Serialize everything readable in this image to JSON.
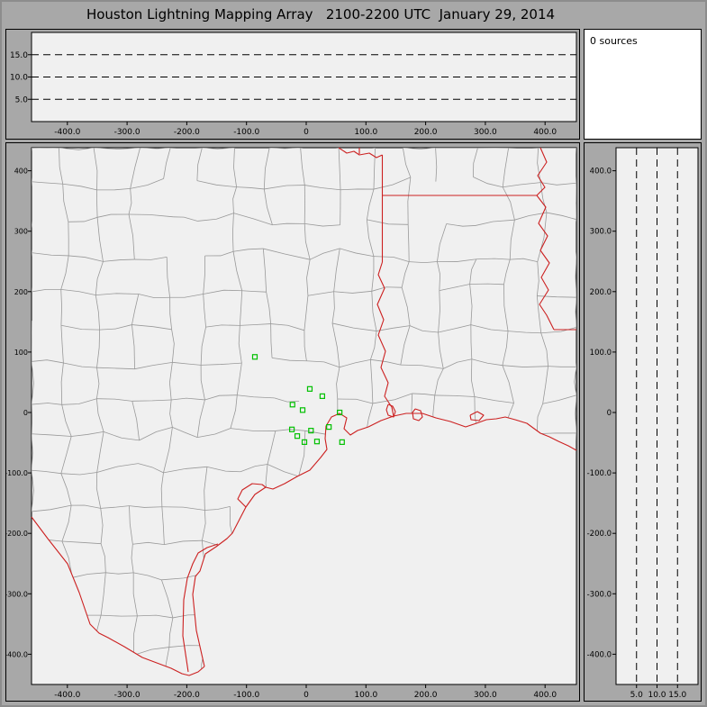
{
  "title": "Houston Lightning Mapping Array   2100-2200 UTC  January 29, 2014",
  "sources_panel": {
    "label": "0 sources"
  },
  "top_panel": {
    "y_tick_values": [
      15,
      10,
      5
    ],
    "y_tick_labels": [
      "15.0",
      "10.0",
      "5.0"
    ],
    "x_tick_values": [
      -400,
      -300,
      -200,
      -100,
      0,
      100,
      200,
      300,
      400
    ],
    "x_tick_labels": [
      "-400.0",
      "-300.0",
      "-200.0",
      "-100.0",
      "0",
      "100.0",
      "200.0",
      "300.0",
      "400.0"
    ]
  },
  "map_panel": {
    "y_tick_values": [
      400,
      300,
      200,
      100,
      0,
      -100,
      -200,
      -300,
      -400
    ],
    "y_tick_labels": [
      "400",
      "300",
      "200",
      "100",
      "0",
      "-100.0",
      "-200.0",
      "-300.0",
      "-400.0"
    ],
    "x_tick_values": [
      -400,
      -300,
      -200,
      -100,
      0,
      100,
      200,
      300,
      400
    ],
    "x_tick_labels": [
      "-400.0",
      "-300.0",
      "-200.0",
      "-100.0",
      "0",
      "100.0",
      "200.0",
      "300.0",
      "400.0"
    ]
  },
  "right_panel": {
    "y_tick_values": [
      400,
      300,
      200,
      100,
      0,
      -100,
      -200,
      -300,
      -400
    ],
    "y_tick_labels": [
      "400.0",
      "300.0",
      "200.0",
      "100.0",
      "0",
      "-100.0",
      "-200.0",
      "-300.0",
      "-400.0"
    ],
    "x_tick_values": [
      5,
      10,
      15
    ],
    "x_tick_labels": [
      "5.0",
      "10.0",
      "15.0"
    ]
  },
  "colors": {
    "frame_gray": "#a8a8a8",
    "plot_bg": "#f0f0f0",
    "panel_border": "#000000",
    "sources_bg": "#ffffff",
    "county_gray": "#999999",
    "boundary_red": "#cc2020",
    "station_green": "#00c000"
  },
  "chart_data": {
    "type": "scatter",
    "title": "Houston Lightning Mapping Array   2100-2200 UTC  January 29, 2014",
    "source_count": 0,
    "legend": "none",
    "panels": [
      {
        "id": "altitude-vs-east-west",
        "type": "scatter",
        "x_ticks": [
          -400,
          -300,
          -200,
          -100,
          0,
          100,
          200,
          300,
          400
        ],
        "y_range_km": [
          0,
          20
        ],
        "y_ref_lines_km": [
          5,
          10,
          15
        ],
        "grid": false,
        "points": []
      },
      {
        "id": "sources-count",
        "type": "table",
        "text": "0 sources"
      },
      {
        "id": "plan-view-map",
        "type": "scatter",
        "x_ticks": [
          -400,
          -300,
          -200,
          -100,
          0,
          100,
          200,
          300,
          400
        ],
        "y_ticks": [
          400,
          300,
          200,
          100,
          0,
          -100,
          -200,
          -300,
          -400
        ],
        "grid": false,
        "features": [
          "county-boundaries",
          "state-borders",
          "gulf-coastline",
          "rio-grande",
          "mississippi-river",
          "galveston-bay"
        ],
        "stations_km": [
          [
            -86,
            92
          ],
          [
            6,
            39
          ],
          [
            27,
            27
          ],
          [
            -23,
            13
          ],
          [
            -6,
            4
          ],
          [
            56,
            0
          ],
          [
            38,
            -24
          ],
          [
            -24,
            -28
          ],
          [
            8,
            -30
          ],
          [
            -15,
            -39
          ],
          [
            18,
            -48
          ],
          [
            -3,
            -49
          ],
          [
            60,
            -49
          ]
        ],
        "points": []
      },
      {
        "id": "altitude-vs-north-south",
        "type": "scatter",
        "x_range_km": [
          0,
          20
        ],
        "x_ref_lines_km": [
          5,
          10,
          15
        ],
        "y_ticks": [
          400,
          300,
          200,
          100,
          0,
          -100,
          -200,
          -300,
          -400
        ],
        "grid": false,
        "points": []
      }
    ]
  }
}
